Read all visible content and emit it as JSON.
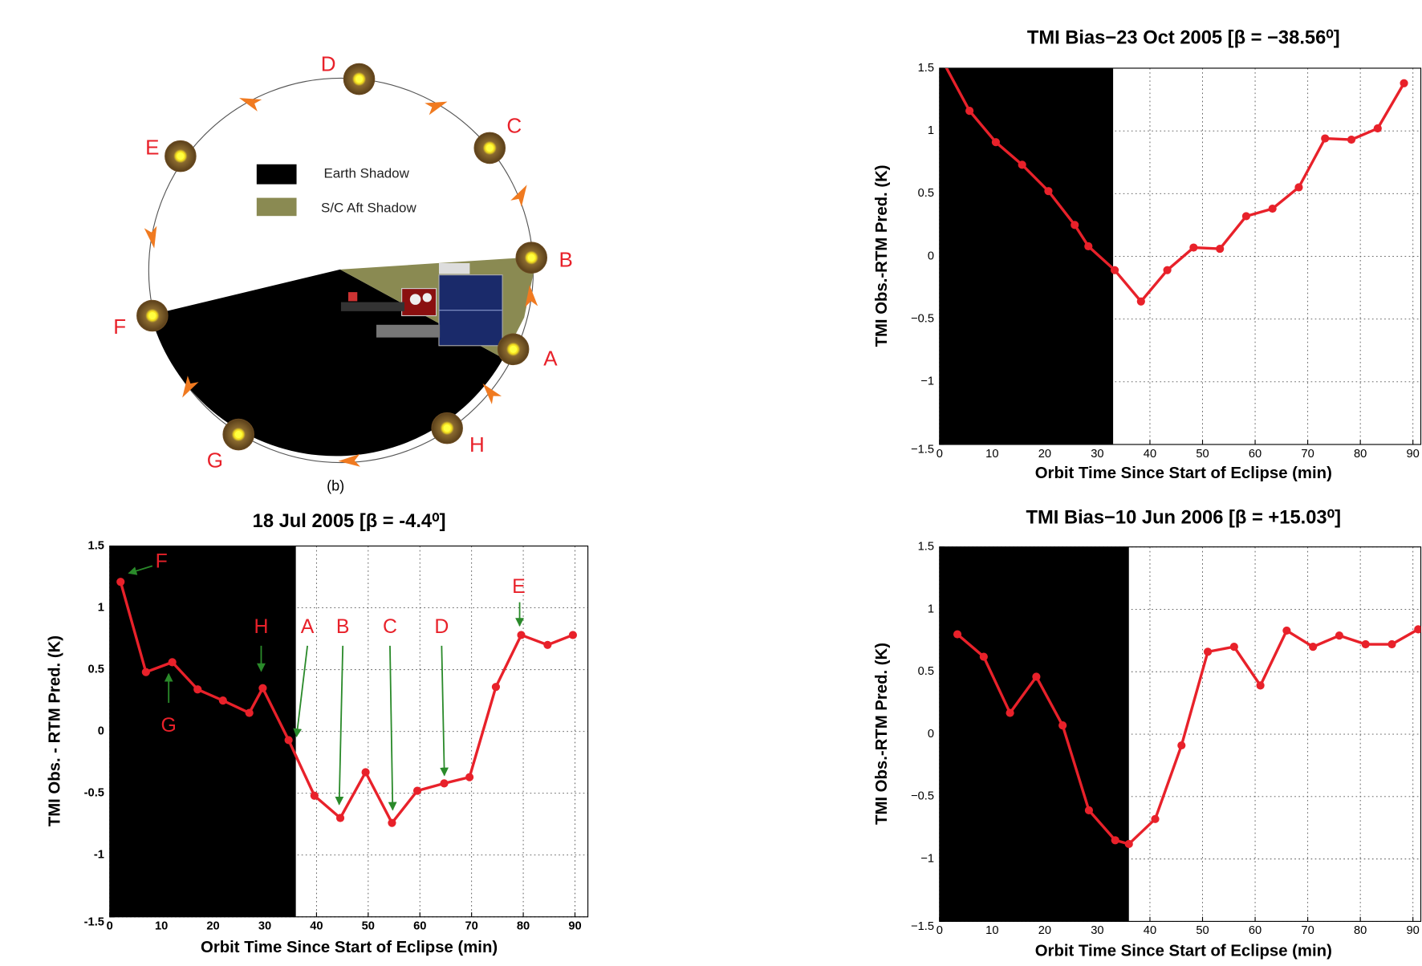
{
  "diagram": {
    "points": [
      "A",
      "B",
      "C",
      "D",
      "E",
      "F",
      "G",
      "H"
    ],
    "legend": [
      "Earth Shadow",
      "S/C Aft Shadow"
    ],
    "caption": "(b)"
  },
  "chart_data": [
    {
      "type": "line",
      "title": "18 Jul 2005 [β = -4.4⁰]",
      "xlabel": "Orbit Time Since Start of Eclipse (min)",
      "ylabel": "TMI Obs. - RTM Pred. (K)",
      "x": [
        2.1,
        7.0,
        12.1,
        17.0,
        21.9,
        27.0,
        29.6,
        34.6,
        39.6,
        44.6,
        49.5,
        54.6,
        59.5,
        64.7,
        69.6,
        74.7,
        79.6,
        84.7,
        89.6
      ],
      "values": [
        1.21,
        0.48,
        0.56,
        0.34,
        0.25,
        0.15,
        0.35,
        -0.07,
        -0.52,
        -0.7,
        -0.33,
        -0.74,
        -0.48,
        -0.42,
        -0.37,
        0.36,
        0.78,
        0.7,
        0.78
      ],
      "color": "#e8212a",
      "shade": [
        0,
        36
      ],
      "shade_color": "#000000",
      "xlim": [
        0,
        92.5
      ],
      "ylim": [
        -1.5,
        1.5
      ],
      "xticks": [
        0,
        10,
        20,
        30,
        40,
        50,
        60,
        70,
        80,
        90
      ],
      "yticks": [
        -1.5,
        -1,
        -0.5,
        0,
        0.5,
        1,
        1.5
      ],
      "grid": true,
      "annotations": [
        "F",
        "G",
        "H",
        "A",
        "B",
        "C",
        "D",
        "E"
      ]
    },
    {
      "type": "line",
      "title": "TMI Bias−23 Oct 2005 [β = −38.56⁰]",
      "xlabel": "Orbit Time Since Start of Eclipse (min)",
      "ylabel": "TMI Obs.-RTM Pred. (K)",
      "x": [
        0.7,
        5.7,
        10.7,
        15.7,
        20.7,
        25.7,
        28.3,
        33.3,
        38.3,
        43.3,
        48.3,
        53.3,
        58.3,
        63.3,
        68.3,
        73.3,
        78.3,
        83.3,
        88.3
      ],
      "values": [
        1.55,
        1.16,
        0.91,
        0.73,
        0.52,
        0.25,
        0.08,
        -0.11,
        -0.36,
        -0.11,
        0.07,
        0.06,
        0.32,
        0.38,
        0.55,
        0.94,
        0.93,
        1.02,
        1.38
      ],
      "color": "#e8212a",
      "shade": [
        0,
        33
      ],
      "shade_color": "#000000",
      "xlim": [
        0,
        91.5
      ],
      "ylim": [
        -1.5,
        1.5
      ],
      "xticks": [
        0,
        10,
        20,
        30,
        40,
        50,
        60,
        70,
        80,
        90
      ],
      "yticks": [
        {
          "value": -1.5,
          "label": "−1.5"
        },
        {
          "value": -1,
          "label": "−1"
        },
        {
          "value": -0.5,
          "label": "−0.5"
        },
        0,
        0.5,
        1,
        1.5
      ],
      "grid": true
    },
    {
      "type": "line",
      "title": "TMI Bias−10 Jun 2006 [β = +15.03⁰]",
      "xlabel": "Orbit Time Since Start of Eclipse (min)",
      "ylabel": "TMI Obs.-RTM Pred. (K)",
      "x": [
        3.4,
        8.4,
        13.4,
        18.4,
        23.4,
        28.4,
        33.4,
        36.0,
        41.0,
        46.0,
        51.0,
        56.0,
        61.0,
        66.0,
        71.0,
        76.0,
        81.0,
        86.0,
        91.0
      ],
      "values": [
        0.8,
        0.62,
        0.17,
        0.46,
        0.07,
        -0.61,
        -0.85,
        -0.88,
        -0.68,
        -0.09,
        0.66,
        0.7,
        0.39,
        0.83,
        0.7,
        0.79,
        0.72,
        0.72,
        0.84
      ],
      "color": "#e8212a",
      "shade": [
        0,
        36
      ],
      "shade_color": "#000000",
      "xlim": [
        0,
        91.5
      ],
      "ylim": [
        -1.5,
        1.5
      ],
      "xticks": [
        0,
        10,
        20,
        30,
        40,
        50,
        60,
        70,
        80,
        90
      ],
      "yticks": [
        {
          "value": -1.5,
          "label": "−1.5"
        },
        {
          "value": -1,
          "label": "−1"
        },
        {
          "value": -0.5,
          "label": "−0.5"
        },
        0,
        0.5,
        1,
        1.5
      ],
      "grid": true
    }
  ]
}
